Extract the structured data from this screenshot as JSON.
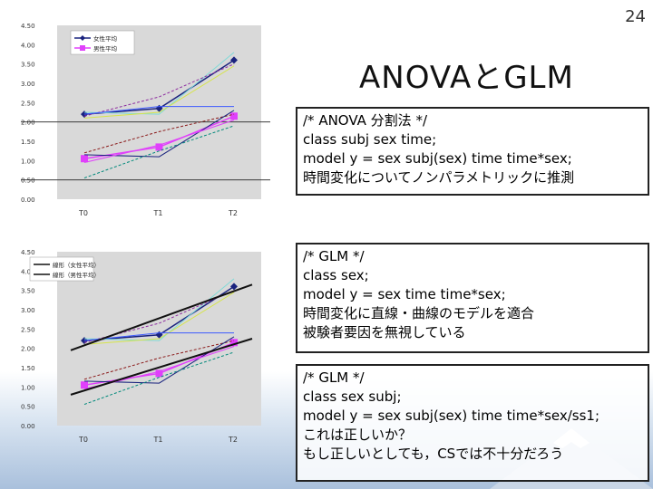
{
  "page_number": "24",
  "title": "ANOVAとGLM",
  "box1": {
    "lines": [
      "/* ANOVA 分割法 */",
      "class subj sex time;",
      "model y = sex subj(sex) time time*sex;",
      "時間変化についてノンパラメトリックに推測"
    ]
  },
  "box2": {
    "lines": [
      "/* GLM */",
      "class sex;",
      "model y = sex time time*sex;",
      "時間変化に直線・曲線のモデルを適合",
      "被験者要因を無視している"
    ]
  },
  "box3": {
    "lines": [
      "/* GLM */",
      "class sex subj;",
      "model y = sex subj(sex) time time*sex/ss1;",
      "これは正しいか？",
      "もし正しいとしても，CSでは不十分だろう"
    ]
  },
  "colors": {
    "female_mean": "#1a237e",
    "male_mean": "#e040fb",
    "chart_bg": "#d9d9d9",
    "fit_line": "#111111"
  },
  "chart_data": [
    {
      "type": "line",
      "categories": [
        "T0",
        "T1",
        "T2"
      ],
      "ylim": [
        0.0,
        4.5
      ],
      "yticks": [
        "0.00",
        "0.50",
        "1.00",
        "1.50",
        "2.00",
        "2.50",
        "3.00",
        "3.50",
        "4.00",
        "4.50"
      ],
      "legend_position": "top-left",
      "legend": [
        "女性平均",
        "男性平均"
      ],
      "series": [
        {
          "name": "女性平均",
          "values": [
            2.2,
            2.35,
            3.6
          ],
          "color": "#1a237e",
          "marker": "diamond",
          "width": 1.5
        },
        {
          "name": "男性平均",
          "values": [
            1.05,
            1.35,
            2.15
          ],
          "color": "#e040fb",
          "marker": "square",
          "width": 1.5
        },
        {
          "values": [
            2.25,
            2.2,
            3.8
          ],
          "color": "#7fdad8",
          "width": 1
        },
        {
          "values": [
            2.15,
            2.65,
            3.5
          ],
          "color": "#8e2fa0",
          "width": 1,
          "dash": true
        },
        {
          "values": [
            2.1,
            2.25,
            3.45
          ],
          "color": "#d6e44a",
          "width": 1
        },
        {
          "values": [
            2.2,
            2.4,
            2.4
          ],
          "color": "#3d5afe",
          "width": 1
        },
        {
          "values": [
            1.2,
            1.75,
            2.2
          ],
          "color": "#8b1a1a",
          "width": 1,
          "dash": true
        },
        {
          "values": [
            1.15,
            1.1,
            2.3
          ],
          "color": "#1a237e",
          "width": 1
        },
        {
          "values": [
            0.55,
            1.25,
            1.9
          ],
          "color": "#00897b",
          "width": 1,
          "dash": true
        },
        {
          "values": [
            0.95,
            1.4,
            2.05
          ],
          "color": "#e040fb",
          "width": 1
        }
      ]
    },
    {
      "type": "line",
      "categories": [
        "T0",
        "T1",
        "T2"
      ],
      "ylim": [
        0.0,
        4.5
      ],
      "yticks": [
        "0.00",
        "0.50",
        "1.00",
        "1.50",
        "2.00",
        "2.50",
        "3.00",
        "3.50",
        "4.00",
        "4.50"
      ],
      "legend_position": "top-left",
      "legend": [
        "線形（女性平均）",
        "線形（男性平均）"
      ],
      "fit_lines": [
        {
          "name": "線形（女性平均）",
          "from": 1.95,
          "to": 3.65
        },
        {
          "name": "線形（男性平均）",
          "from": 0.8,
          "to": 2.25
        }
      ],
      "series": [
        {
          "values": [
            2.2,
            2.35,
            3.6
          ],
          "color": "#1a237e",
          "marker": "diamond",
          "width": 1.5
        },
        {
          "values": [
            1.05,
            1.35,
            2.15
          ],
          "color": "#e040fb",
          "marker": "square",
          "width": 1.5
        },
        {
          "values": [
            2.25,
            2.2,
            3.8
          ],
          "color": "#7fdad8",
          "width": 1
        },
        {
          "values": [
            2.15,
            2.65,
            3.5
          ],
          "color": "#8e2fa0",
          "width": 1,
          "dash": true
        },
        {
          "values": [
            2.1,
            2.25,
            3.45
          ],
          "color": "#d6e44a",
          "width": 1
        },
        {
          "values": [
            2.2,
            2.4,
            2.4
          ],
          "color": "#3d5afe",
          "width": 1
        },
        {
          "values": [
            1.2,
            1.75,
            2.2
          ],
          "color": "#8b1a1a",
          "width": 1,
          "dash": true
        },
        {
          "values": [
            1.15,
            1.1,
            2.3
          ],
          "color": "#1a237e",
          "width": 1
        },
        {
          "values": [
            0.55,
            1.25,
            1.9
          ],
          "color": "#00897b",
          "width": 1,
          "dash": true
        },
        {
          "values": [
            0.95,
            1.4,
            2.05
          ],
          "color": "#e040fb",
          "width": 1
        }
      ]
    }
  ]
}
